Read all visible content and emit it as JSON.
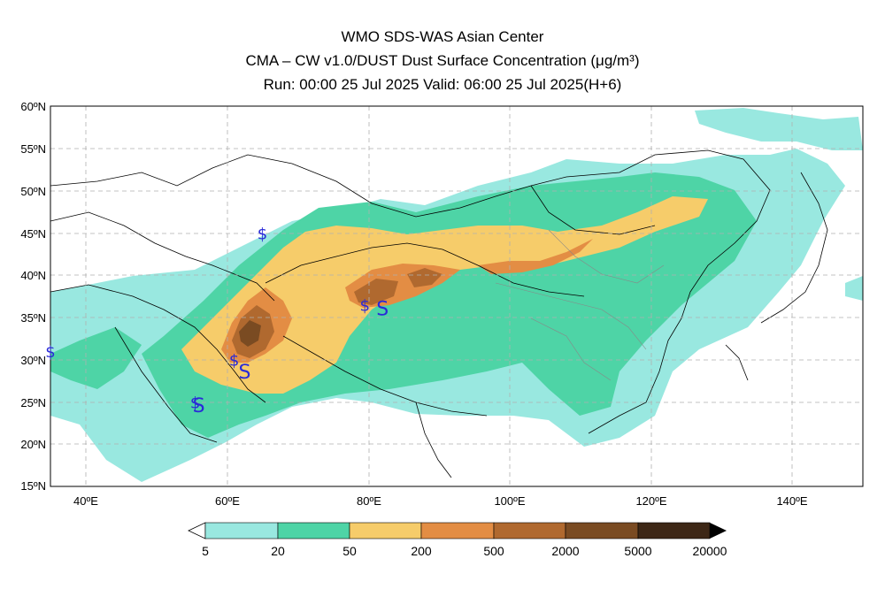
{
  "header": {
    "line1": "WMO SDS-WAS Asian Center",
    "line2": "CMA – CW v1.0/DUST Dust Surface Concentration (μg/m³)",
    "line3": "Run: 00:00 25 Jul 2025    Valid: 06:00 25 Jul 2025(H+6)"
  },
  "map": {
    "lon_range": [
      35,
      150
    ],
    "lat_range": [
      15,
      60
    ],
    "lat_ticks": [
      "60ºN",
      "55ºN",
      "50ºN",
      "45ºN",
      "40ºN",
      "35ºN",
      "30ºN",
      "25ºN",
      "20ºN",
      "15ºN"
    ],
    "lon_ticks": [
      "40ºE",
      "60ºE",
      "80ºE",
      "100ºE",
      "120ºE",
      "140ºE"
    ],
    "grid": "dashed",
    "markers": [
      {
        "symbol": "$",
        "lon": 65,
        "lat": 45
      },
      {
        "symbol": "$",
        "lon": 35,
        "lat": 31
      },
      {
        "symbol": "$",
        "lon": 79.5,
        "lat": 36.5
      },
      {
        "symbol": "S",
        "lon": 82,
        "lat": 36
      },
      {
        "symbol": "$",
        "lon": 61,
        "lat": 30
      },
      {
        "symbol": "S",
        "lon": 62.5,
        "lat": 28.5
      },
      {
        "symbol": "$",
        "lon": 55.5,
        "lat": 25
      },
      {
        "symbol": "S",
        "lon": 56,
        "lat": 24.5
      }
    ]
  },
  "colorbar": {
    "labels": [
      "5",
      "20",
      "50",
      "200",
      "500",
      "2000",
      "5000",
      "20000"
    ],
    "colors": [
      "#99e8e0",
      "#4ed4a6",
      "#f6cc6a",
      "#e38d44",
      "#b0692f",
      "#7a4b22",
      "#3d2716"
    ]
  }
}
